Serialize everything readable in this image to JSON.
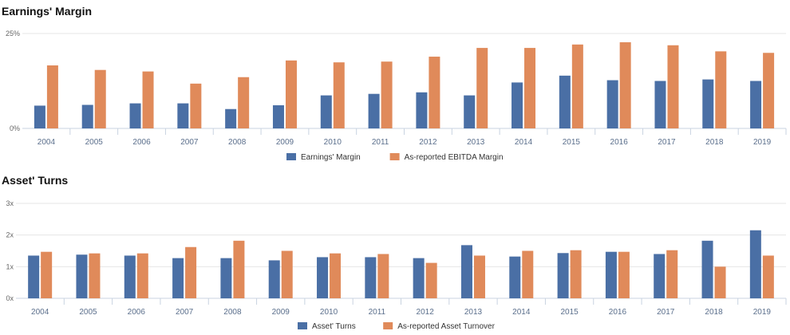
{
  "colors": {
    "series1": "#4a6fa5",
    "series2": "#e08a5a",
    "grid": "#e6e6e6",
    "axis": "#c8d3e0"
  },
  "chart_data": [
    {
      "type": "bar",
      "title": "Earnings' Margin",
      "categories": [
        "2004",
        "2005",
        "2006",
        "2007",
        "2008",
        "2009",
        "2010",
        "2011",
        "2012",
        "2013",
        "2014",
        "2015",
        "2016",
        "2017",
        "2018",
        "2019"
      ],
      "series": [
        {
          "name": "Earnings' Margin",
          "values": [
            6.0,
            6.2,
            6.6,
            6.6,
            5.1,
            6.1,
            8.7,
            9.1,
            9.5,
            8.7,
            12.1,
            13.9,
            12.7,
            12.5,
            12.9,
            12.5
          ]
        },
        {
          "name": "As-reported EBITDA Margin",
          "values": [
            16.6,
            15.4,
            15.0,
            11.8,
            13.5,
            17.9,
            17.4,
            17.6,
            18.9,
            21.2,
            21.2,
            22.1,
            22.7,
            21.9,
            20.3,
            19.9
          ]
        }
      ],
      "ytick_labels": [
        "0%",
        "25%"
      ],
      "ylim": [
        0,
        25
      ],
      "grid": true,
      "legend": "bottom-center"
    },
    {
      "type": "bar",
      "title": "Asset' Turns",
      "categories": [
        "2004",
        "2005",
        "2006",
        "2007",
        "2008",
        "2009",
        "2010",
        "2011",
        "2012",
        "2013",
        "2014",
        "2015",
        "2016",
        "2017",
        "2018",
        "2019"
      ],
      "series": [
        {
          "name": "Asset' Turns",
          "values": [
            1.35,
            1.38,
            1.35,
            1.27,
            1.27,
            1.2,
            1.3,
            1.3,
            1.27,
            1.68,
            1.32,
            1.43,
            1.47,
            1.4,
            1.82,
            2.15
          ]
        },
        {
          "name": "As-reported Asset Turnover",
          "values": [
            1.47,
            1.42,
            1.42,
            1.62,
            1.82,
            1.5,
            1.42,
            1.4,
            1.12,
            1.35,
            1.5,
            1.52,
            1.47,
            1.52,
            1.0,
            1.35
          ]
        }
      ],
      "ytick_labels": [
        "0x",
        "1x",
        "2x",
        "3x"
      ],
      "ylim": [
        0,
        3
      ],
      "grid": true,
      "legend": "bottom-center"
    }
  ]
}
